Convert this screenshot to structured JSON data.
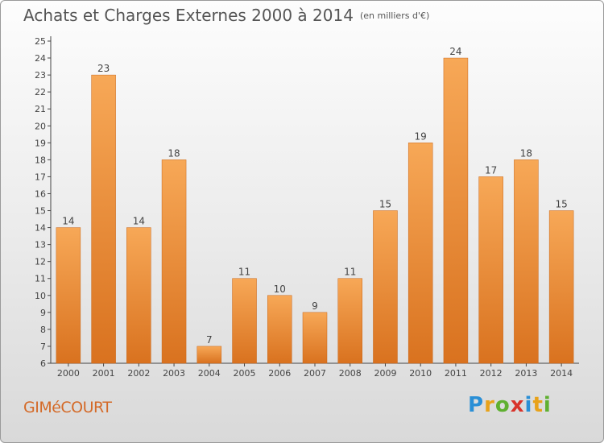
{
  "header": {
    "title": "Achats et Charges Externes 2000 à 2014",
    "unit": "(en milliers d'€)"
  },
  "footer": {
    "commune": "GIMéCOURT",
    "logo_letters": [
      "P",
      "r",
      "o",
      "x",
      "i",
      "t",
      "i"
    ]
  },
  "colors": {
    "bar_top": "#f7a857",
    "bar_bottom": "#d9721f",
    "text": "#555555",
    "commune": "#d46a28"
  },
  "chart_data": {
    "type": "bar",
    "title": "Achats et Charges Externes 2000 à 2014",
    "subtitle": "(en milliers d'€)",
    "categories": [
      "2000",
      "2001",
      "2002",
      "2003",
      "2004",
      "2005",
      "2006",
      "2007",
      "2008",
      "2009",
      "2010",
      "2011",
      "2012",
      "2013",
      "2014"
    ],
    "values": [
      14,
      23,
      14,
      18,
      7,
      11,
      10,
      9,
      11,
      15,
      19,
      24,
      17,
      18,
      15
    ],
    "ylim": [
      6,
      25
    ],
    "yticks": [
      6,
      7,
      8,
      9,
      10,
      11,
      12,
      13,
      14,
      15,
      16,
      17,
      18,
      19,
      20,
      21,
      22,
      23,
      24,
      25
    ],
    "grid": false,
    "data_labels": true,
    "xlabel": "",
    "ylabel": ""
  }
}
